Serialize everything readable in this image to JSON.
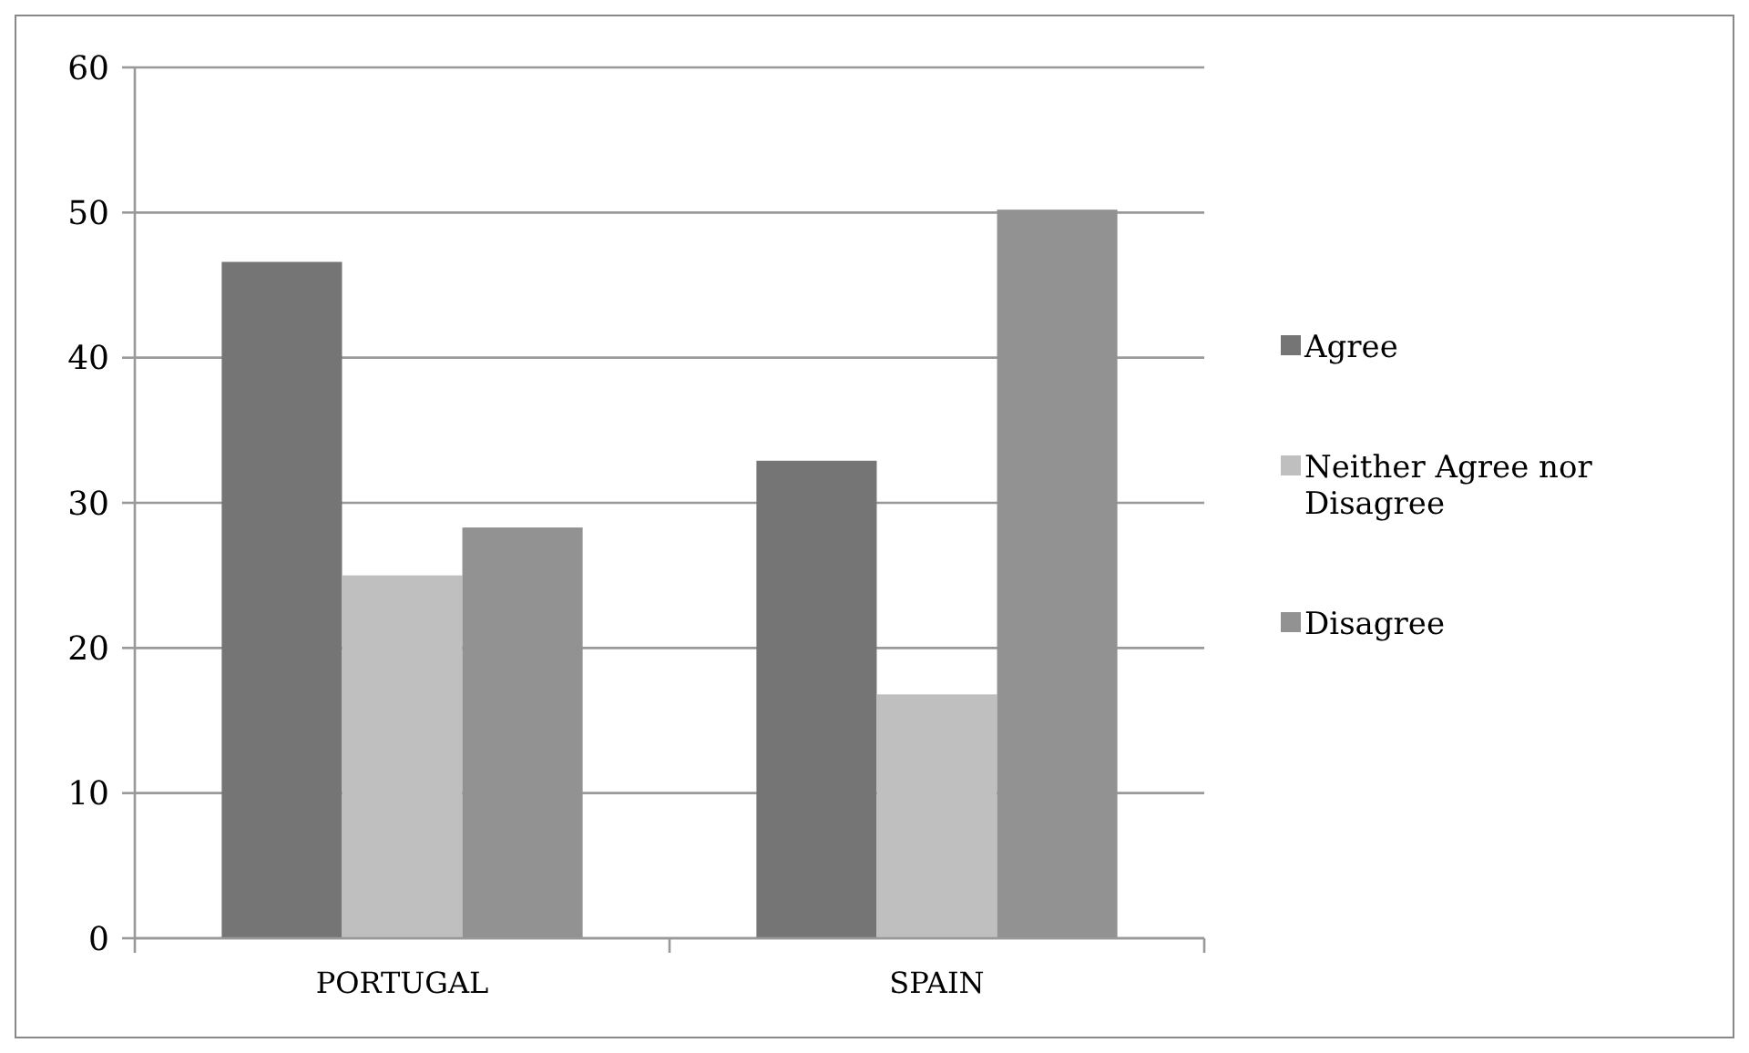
{
  "chart_data": {
    "type": "bar",
    "categories": [
      "PORTUGAL",
      "SPAIN"
    ],
    "series": [
      {
        "name": "Agree",
        "color": "#757575",
        "values": [
          46.6,
          32.9
        ]
      },
      {
        "name": "Neither Agree nor Disagree",
        "color": "#bfbfbf",
        "values": [
          25.0,
          16.8
        ]
      },
      {
        "name": "Disagree",
        "color": "#929292",
        "values": [
          28.3,
          50.2
        ]
      }
    ],
    "ylim": [
      0,
      60
    ],
    "yticks": [
      0,
      10,
      20,
      30,
      40,
      50,
      60
    ],
    "grid": "y",
    "legend": "right"
  }
}
